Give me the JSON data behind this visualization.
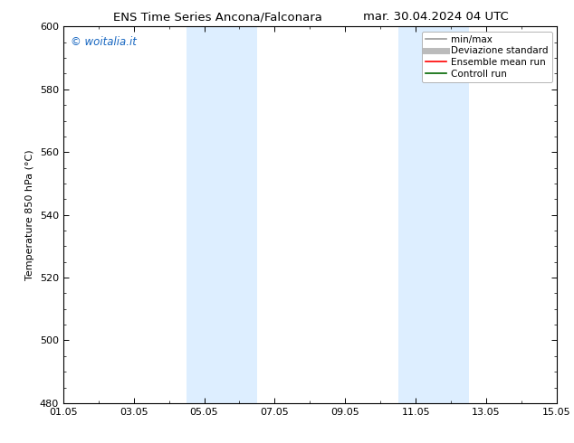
{
  "title_left": "ENS Time Series Ancona/Falconara",
  "title_right": "mar. 30.04.2024 04 UTC",
  "ylabel": "Temperature 850 hPa (°C)",
  "watermark": "© woitalia.it",
  "watermark_color": "#1565c0",
  "ylim": [
    480,
    600
  ],
  "yticks": [
    480,
    500,
    520,
    540,
    560,
    580,
    600
  ],
  "xtick_labels": [
    "01.05",
    "03.05",
    "05.05",
    "07.05",
    "09.05",
    "11.05",
    "13.05",
    "15.05"
  ],
  "xtick_positions": [
    0,
    2,
    4,
    6,
    8,
    10,
    12,
    14
  ],
  "xlim": [
    0,
    14
  ],
  "shaded_regions": [
    {
      "start": 3.5,
      "end": 5.5,
      "color": "#ddeeff"
    },
    {
      "start": 9.5,
      "end": 11.5,
      "color": "#ddeeff"
    }
  ],
  "legend_items": [
    {
      "label": "min/max",
      "color": "#999999",
      "lw": 1.2,
      "ls": "-"
    },
    {
      "label": "Deviazione standard",
      "color": "#bbbbbb",
      "lw": 5,
      "ls": "-"
    },
    {
      "label": "Ensemble mean run",
      "color": "#ff0000",
      "lw": 1.2,
      "ls": "-"
    },
    {
      "label": "Controll run",
      "color": "#006600",
      "lw": 1.2,
      "ls": "-"
    }
  ],
  "background_color": "#ffffff",
  "title_fontsize": 9.5,
  "ylabel_fontsize": 8,
  "tick_fontsize": 8,
  "watermark_fontsize": 8.5,
  "legend_fontsize": 7.5
}
